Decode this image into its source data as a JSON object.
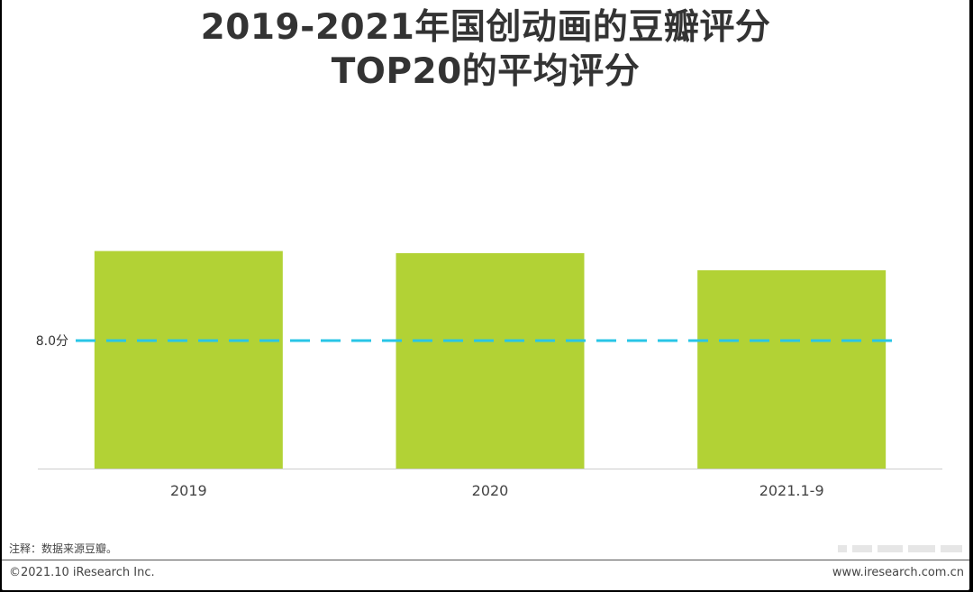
{
  "title_line1": "2019-2021年国创动画的豆瓣评分",
  "title_line2": "TOP20的平均评分",
  "chart_data": {
    "type": "bar",
    "title": "2019-2021年国创动画的豆瓣评分TOP20的平均评分",
    "categories": [
      "2019",
      "2020",
      "2021.1-9"
    ],
    "values": [
      8.42,
      8.41,
      8.33
    ],
    "ylim": [
      7.4,
      8.9
    ],
    "reference_line": {
      "value": 8.0,
      "label": "8.0分",
      "style": "dashed"
    },
    "bar_color": "#b2d235",
    "reference_color": "#29c5e6",
    "grid": false,
    "legend": "none"
  },
  "note": "注释：数据来源豆瓣。",
  "copyright": "©2021.10 iResearch Inc.",
  "website": "www.iresearch.com.cn"
}
